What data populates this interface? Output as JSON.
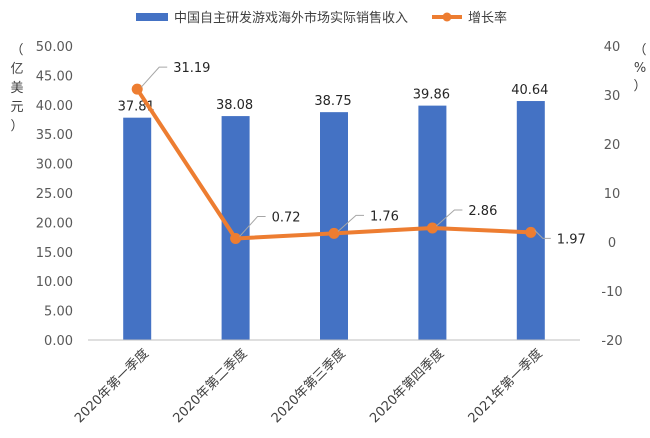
{
  "chart_data": {
    "type": "bar",
    "categories": [
      "2020年第一季度",
      "2020年第二季度",
      "2020年第三季度",
      "2020年第四季度",
      "2021年第一季度"
    ],
    "series": [
      {
        "name": "中国自主研发游戏海外市场实际销售收入",
        "type": "bar",
        "axis": "left",
        "values": [
          37.81,
          38.08,
          38.75,
          39.86,
          40.64
        ],
        "labels": [
          "37.81",
          "38.08",
          "38.75",
          "39.86",
          "40.64"
        ],
        "color": "#4472C4"
      },
      {
        "name": "增长率",
        "type": "line",
        "axis": "right",
        "values": [
          31.19,
          0.72,
          1.76,
          2.86,
          1.97
        ],
        "labels": [
          "31.19",
          "0.72",
          "1.76",
          "2.86",
          "1.97"
        ],
        "color": "#ED7D31"
      }
    ],
    "y_left": {
      "label_chars": [
        "（",
        "亿",
        "美",
        "元",
        "）"
      ],
      "ylim": [
        0,
        50
      ],
      "ticks": [
        "0.00",
        "5.00",
        "10.00",
        "15.00",
        "20.00",
        "25.00",
        "30.00",
        "35.00",
        "40.00",
        "45.00",
        "50.00"
      ]
    },
    "y_right": {
      "label_chars": [
        "（",
        "%",
        "）"
      ],
      "ylim": [
        -20,
        40
      ],
      "ticks": [
        "-20",
        "-10",
        "0",
        "10",
        "20",
        "30",
        "40"
      ]
    },
    "legend_position": "top",
    "grid": false
  }
}
